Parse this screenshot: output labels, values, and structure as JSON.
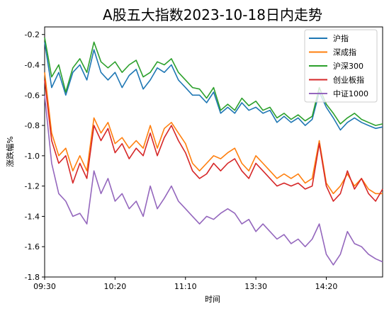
{
  "chart_data": {
    "type": "line",
    "title": "A股五大指数2023-10-18日内走势",
    "xlabel": "时间",
    "ylabel": "涨跌幅%",
    "ylim": [
      -1.8,
      -0.15
    ],
    "yticks": [
      -0.2,
      -0.4,
      -0.6,
      -0.8,
      -1.0,
      -1.2,
      -1.4,
      -1.6,
      -1.8
    ],
    "ytick_labels": [
      "-0.2",
      "-0.4",
      "-0.6",
      "-0.8",
      "-1.0",
      "-1.2",
      "-1.4",
      "-1.6",
      "-1.8"
    ],
    "xticks": [
      "09:30",
      "10:20",
      "11:10",
      "13:30",
      "14:20"
    ],
    "x": [
      "09:30",
      "09:35",
      "09:40",
      "09:45",
      "09:50",
      "09:55",
      "10:00",
      "10:05",
      "10:10",
      "10:15",
      "10:20",
      "10:25",
      "10:30",
      "10:35",
      "10:40",
      "10:45",
      "10:50",
      "10:55",
      "11:00",
      "11:05",
      "11:10",
      "11:15",
      "11:20",
      "11:25",
      "11:30",
      "13:05",
      "13:10",
      "13:15",
      "13:20",
      "13:25",
      "13:30",
      "13:35",
      "13:40",
      "13:45",
      "13:50",
      "13:55",
      "14:00",
      "14:05",
      "14:10",
      "14:15",
      "14:20",
      "14:25",
      "14:30",
      "14:35",
      "14:40",
      "14:45",
      "14:50",
      "14:55",
      "15:00"
    ],
    "grid": false,
    "legend_position": "top-right",
    "series": [
      {
        "name": "沪指",
        "color": "#1f77b4",
        "values": [
          -0.25,
          -0.55,
          -0.45,
          -0.6,
          -0.45,
          -0.4,
          -0.5,
          -0.3,
          -0.45,
          -0.5,
          -0.45,
          -0.55,
          -0.47,
          -0.43,
          -0.56,
          -0.5,
          -0.42,
          -0.45,
          -0.4,
          -0.5,
          -0.55,
          -0.6,
          -0.6,
          -0.65,
          -0.58,
          -0.72,
          -0.68,
          -0.72,
          -0.65,
          -0.7,
          -0.68,
          -0.72,
          -0.7,
          -0.78,
          -0.74,
          -0.78,
          -0.75,
          -0.8,
          -0.76,
          -0.58,
          -0.68,
          -0.75,
          -0.83,
          -0.78,
          -0.75,
          -0.78,
          -0.8,
          -0.82,
          -0.81
        ]
      },
      {
        "name": "深成指",
        "color": "#ff7f0e",
        "values": [
          -0.45,
          -0.85,
          -1.0,
          -0.95,
          -1.1,
          -1.0,
          -1.1,
          -0.75,
          -0.85,
          -0.78,
          -0.92,
          -0.88,
          -0.95,
          -0.9,
          -0.95,
          -0.8,
          -0.95,
          -0.82,
          -0.78,
          -0.85,
          -0.92,
          -1.05,
          -1.1,
          -1.05,
          -1.0,
          -1.02,
          -0.98,
          -0.95,
          -1.05,
          -1.1,
          -1.0,
          -1.05,
          -1.1,
          -1.15,
          -1.12,
          -1.15,
          -1.12,
          -1.18,
          -1.15,
          -0.9,
          -1.18,
          -1.25,
          -1.2,
          -1.12,
          -1.2,
          -1.15,
          -1.22,
          -1.25,
          -1.25
        ]
      },
      {
        "name": "沪深300",
        "color": "#2ca02c",
        "values": [
          -0.22,
          -0.48,
          -0.4,
          -0.58,
          -0.42,
          -0.36,
          -0.45,
          -0.25,
          -0.38,
          -0.42,
          -0.38,
          -0.45,
          -0.4,
          -0.37,
          -0.48,
          -0.45,
          -0.38,
          -0.4,
          -0.36,
          -0.45,
          -0.5,
          -0.55,
          -0.56,
          -0.62,
          -0.55,
          -0.7,
          -0.66,
          -0.7,
          -0.62,
          -0.67,
          -0.64,
          -0.7,
          -0.68,
          -0.75,
          -0.72,
          -0.76,
          -0.73,
          -0.77,
          -0.74,
          -0.55,
          -0.66,
          -0.72,
          -0.79,
          -0.75,
          -0.72,
          -0.76,
          -0.78,
          -0.8,
          -0.79
        ]
      },
      {
        "name": "创业板指",
        "color": "#d62728",
        "values": [
          -0.5,
          -0.9,
          -1.05,
          -1.0,
          -1.18,
          -1.05,
          -1.15,
          -0.8,
          -0.9,
          -0.82,
          -0.98,
          -0.92,
          -1.02,
          -0.95,
          -1.0,
          -0.85,
          -1.0,
          -0.88,
          -0.8,
          -0.9,
          -0.98,
          -1.1,
          -1.15,
          -1.12,
          -1.05,
          -1.1,
          -1.05,
          -1.02,
          -1.1,
          -1.15,
          -1.05,
          -1.1,
          -1.15,
          -1.2,
          -1.18,
          -1.2,
          -1.18,
          -1.22,
          -1.2,
          -0.92,
          -1.2,
          -1.3,
          -1.25,
          -1.1,
          -1.22,
          -1.15,
          -1.25,
          -1.3,
          -1.22
        ]
      },
      {
        "name": "中证1000",
        "color": "#9467bd",
        "values": [
          -0.6,
          -1.05,
          -1.25,
          -1.3,
          -1.4,
          -1.38,
          -1.45,
          -1.1,
          -1.25,
          -1.15,
          -1.3,
          -1.25,
          -1.35,
          -1.3,
          -1.4,
          -1.2,
          -1.35,
          -1.28,
          -1.2,
          -1.3,
          -1.35,
          -1.4,
          -1.45,
          -1.4,
          -1.42,
          -1.38,
          -1.35,
          -1.38,
          -1.45,
          -1.42,
          -1.5,
          -1.45,
          -1.5,
          -1.55,
          -1.52,
          -1.58,
          -1.55,
          -1.6,
          -1.55,
          -1.45,
          -1.65,
          -1.72,
          -1.65,
          -1.5,
          -1.58,
          -1.6,
          -1.65,
          -1.68,
          -1.7
        ]
      }
    ]
  }
}
